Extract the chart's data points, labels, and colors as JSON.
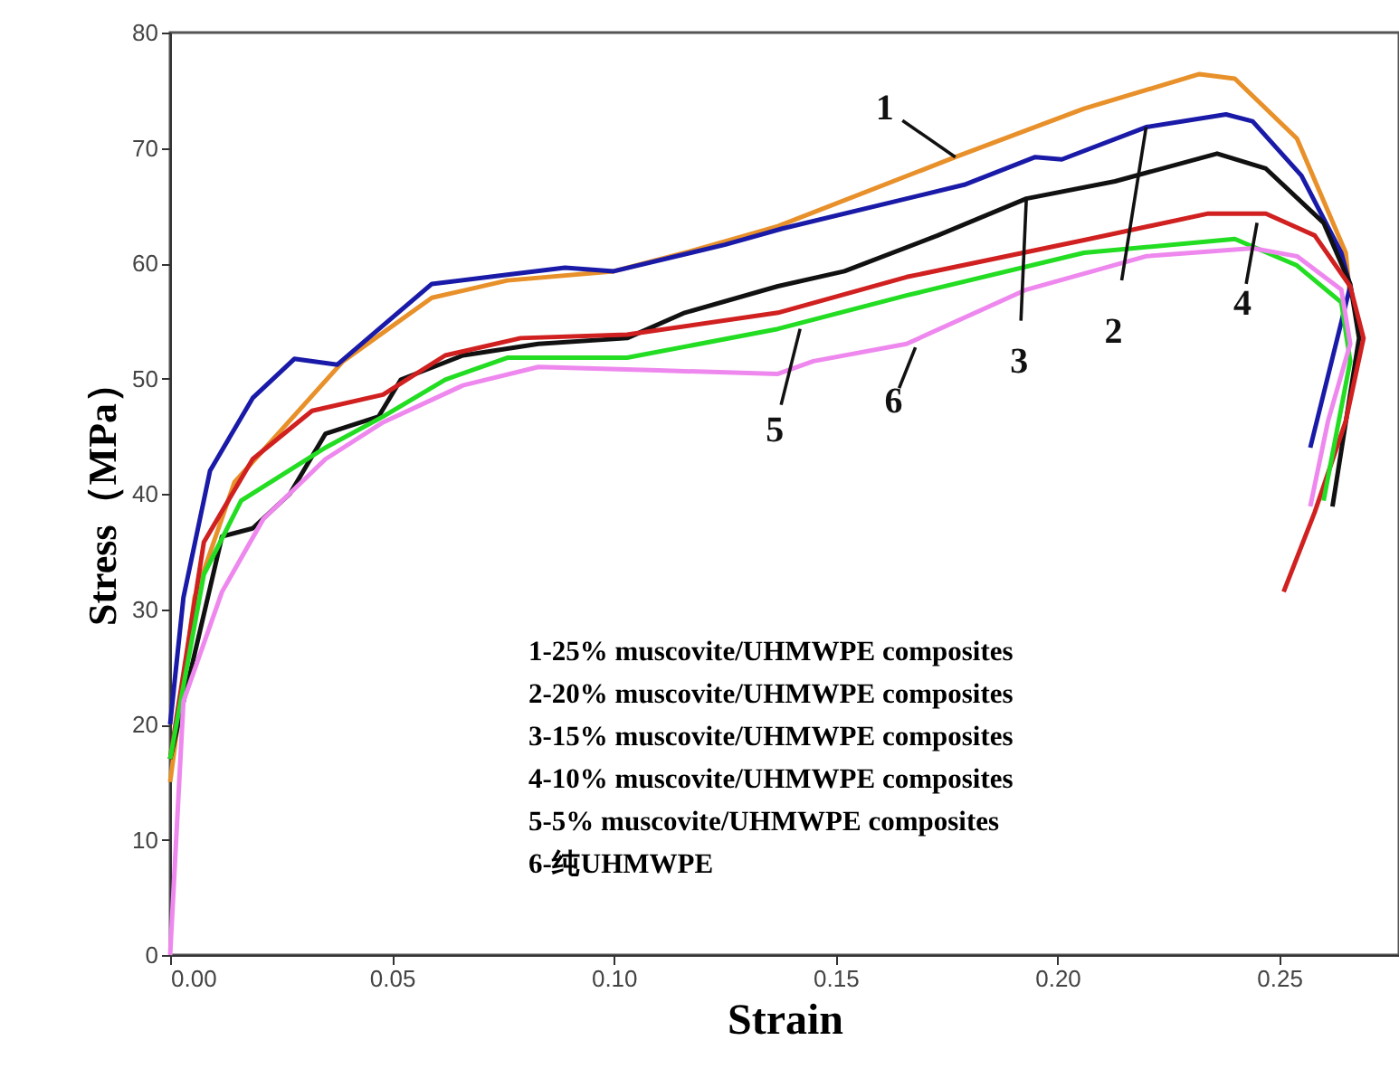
{
  "chart_data": {
    "type": "line",
    "xlabel": "Strain",
    "ylabel": "Stress（MPa）",
    "xlim": [
      0,
      0.277
    ],
    "ylim": [
      0,
      80
    ],
    "xticks": [
      {
        "value": 0,
        "label": "0.00"
      },
      {
        "value": 0.05,
        "label": "0.05"
      },
      {
        "value": 0.1,
        "label": "0.10"
      },
      {
        "value": 0.15,
        "label": "0.15"
      },
      {
        "value": 0.2,
        "label": "0.20"
      },
      {
        "value": 0.25,
        "label": "0.25"
      }
    ],
    "yticks": [
      0,
      10,
      20,
      30,
      40,
      50,
      60,
      70,
      80
    ],
    "grid": false,
    "marker": "none",
    "line_style": "solid",
    "series": [
      {
        "color": "#e8902a",
        "x": [
          0.0,
          0.0055,
          0.0145,
          0.039,
          0.059,
          0.076,
          0.1,
          0.117,
          0.137,
          0.177,
          0.206,
          0.232,
          0.24,
          0.254,
          0.265,
          0.266
        ],
        "values": [
          15,
          31,
          41,
          51.5,
          57,
          58.5,
          59.3,
          61,
          63.2,
          69.2,
          73.4,
          76.4,
          76,
          70.8,
          60.9,
          57
        ]
      },
      {
        "color": "#1a1aa8",
        "x": [
          0.0,
          0.003,
          0.009,
          0.0186,
          0.028,
          0.0377,
          0.048,
          0.059,
          0.076,
          0.089,
          0.1,
          0.125,
          0.138,
          0.179,
          0.195,
          0.201,
          0.22,
          0.238,
          0.244,
          0.255,
          0.264,
          0.266,
          0.257
        ],
        "values": [
          20,
          31,
          42,
          48.3,
          51.7,
          51.2,
          54.6,
          58.2,
          59,
          59.6,
          59.3,
          61.6,
          63,
          66.8,
          69.2,
          69,
          71.8,
          72.9,
          72.3,
          67.6,
          60.9,
          58,
          44
        ]
      },
      {
        "color": "#111111",
        "x": [
          0.0,
          0.0117,
          0.0186,
          0.027,
          0.035,
          0.047,
          0.052,
          0.066,
          0.083,
          0.103,
          0.116,
          0.137,
          0.152,
          0.173,
          0.193,
          0.213,
          0.236,
          0.247,
          0.26,
          0.266,
          0.268,
          0.262
        ],
        "values": [
          17,
          36.3,
          37,
          40,
          45.2,
          46.7,
          49.9,
          52,
          53,
          53.5,
          55.7,
          58,
          59.3,
          62.4,
          65.6,
          67.1,
          69.5,
          68.2,
          63.5,
          58.2,
          53.5,
          38.9
        ]
      },
      {
        "color": "#d02020",
        "x": [
          0.0,
          0.0076,
          0.0186,
          0.032,
          0.048,
          0.062,
          0.079,
          0.103,
          0.137,
          0.166,
          0.206,
          0.234,
          0.247,
          0.258,
          0.266,
          0.269,
          0.265,
          0.258,
          0.251
        ],
        "values": [
          17,
          35.8,
          43,
          47.2,
          48.6,
          52,
          53.5,
          53.8,
          55.7,
          58.8,
          62,
          64.3,
          64.3,
          62.4,
          58,
          53.5,
          46.3,
          38.4,
          31.5
        ]
      },
      {
        "color": "#22dd22",
        "x": [
          0.0,
          0.0076,
          0.016,
          0.035,
          0.048,
          0.062,
          0.076,
          0.103,
          0.137,
          0.166,
          0.206,
          0.24,
          0.254,
          0.264,
          0.266,
          0.26
        ],
        "values": [
          17,
          33,
          39.4,
          44,
          46.7,
          49.9,
          51.8,
          51.8,
          54.3,
          57.2,
          60.9,
          62.1,
          59.8,
          56.6,
          51.5,
          39.4
        ]
      },
      {
        "color": "#ee88ee",
        "x": [
          0.0,
          0.003,
          0.0117,
          0.021,
          0.035,
          0.048,
          0.066,
          0.083,
          0.11,
          0.137,
          0.145,
          0.166,
          0.193,
          0.22,
          0.244,
          0.254,
          0.264,
          0.266,
          0.261,
          0.257
        ],
        "values": [
          0,
          22,
          31.5,
          37.8,
          43,
          46.2,
          49.4,
          51,
          50.7,
          50.4,
          51.5,
          53,
          57.7,
          60.6,
          61.3,
          60.6,
          57.7,
          53,
          46.3,
          38.9
        ]
      }
    ],
    "annotations": [
      {
        "text": "1",
        "x": 0.177,
        "y": 69.2
      },
      {
        "text": "2",
        "x": 0.22,
        "y": 71.8
      },
      {
        "text": "3",
        "x": 0.193,
        "y": 65.6
      },
      {
        "text": "4",
        "x": 0.245,
        "y": 63.5
      },
      {
        "text": "5",
        "x": 0.142,
        "y": 54.3
      },
      {
        "text": "6",
        "x": 0.168,
        "y": 52.7
      },
      "1-25% muscovite/UHMWPE composites",
      "2-20% muscovite/UHMWPE composites",
      "3-15% muscovite/UHMWPE composites",
      "4-10% muscovite/UHMWPE composites",
      "5-5%  muscovite/UHMWPE composites",
      "6-纯UHMWPE"
    ]
  }
}
